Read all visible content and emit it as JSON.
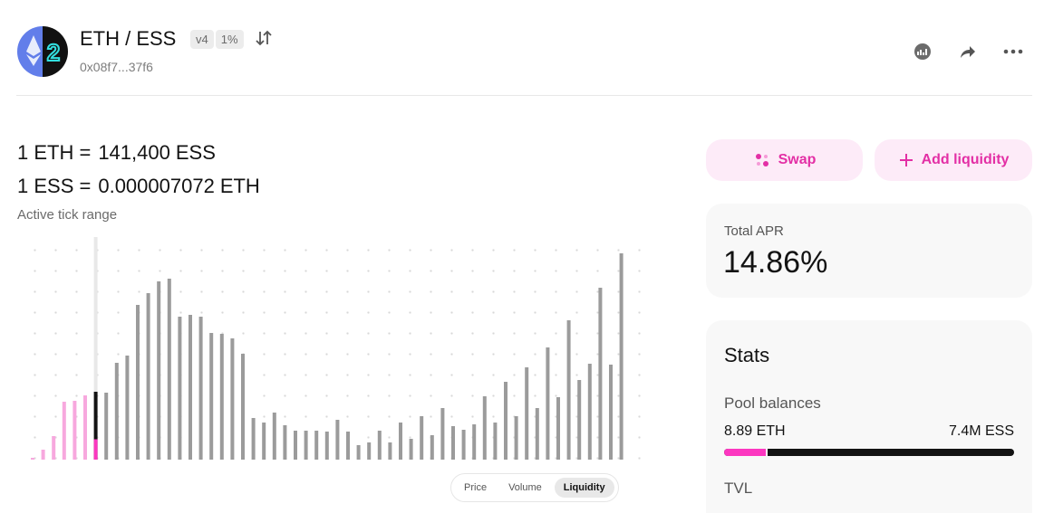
{
  "header": {
    "title": "ETH / ESS",
    "version": "v4",
    "fee": "1%",
    "address": "0x08f7...37f6"
  },
  "prices": [
    {
      "base": "1 ETH =",
      "amount": {
        "value": 141400,
        "label": "141,400"
      },
      "quote": "ESS"
    },
    {
      "base": "1 ESS =",
      "amount": "0.000007072",
      "quote": "ETH"
    }
  ],
  "chart_label": "Active tick range",
  "chart_data": {
    "type": "bar",
    "active_index": 6,
    "colors": {
      "below": "#f7a8de",
      "active": "#131313",
      "active_base": "#fc37c0",
      "above": "#9b9b9b"
    },
    "values": [
      2,
      11,
      26,
      64,
      65,
      71,
      75,
      74,
      107,
      115,
      171,
      184,
      197,
      200,
      158,
      160,
      158,
      140,
      139,
      134,
      117,
      46,
      41,
      52,
      38,
      32,
      32,
      32,
      31,
      44,
      31,
      16,
      19,
      32,
      19,
      41,
      23,
      48,
      27,
      57,
      37,
      33,
      39,
      70,
      41,
      86,
      48,
      102,
      57,
      124,
      69,
      154,
      88,
      106,
      190,
      105,
      228
    ],
    "toggles": [
      "Price",
      "Volume",
      "Liquidity"
    ],
    "selected_toggle": 2
  },
  "actions": {
    "swap": "Swap",
    "add_liquidity": "Add liquidity"
  },
  "apr": {
    "label": "Total APR",
    "value": "14.86%"
  },
  "stats": {
    "title": "Stats",
    "pool_balances": "Pool balances",
    "token0": {
      "value": 8.89,
      "label": "8.89 ETH"
    },
    "token1": {
      "value": 7400000,
      "label": "7.4M ESS"
    },
    "tvl": "TVL"
  }
}
